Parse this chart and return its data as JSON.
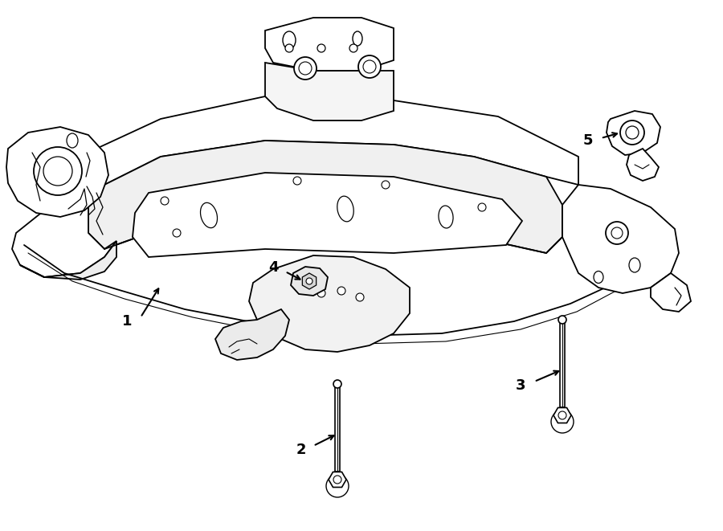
{
  "bg_color": "#ffffff",
  "line_color": "#000000",
  "figsize": [
    9.0,
    6.61
  ],
  "dpi": 100,
  "lw_main": 1.3,
  "label_fontsize": 13
}
